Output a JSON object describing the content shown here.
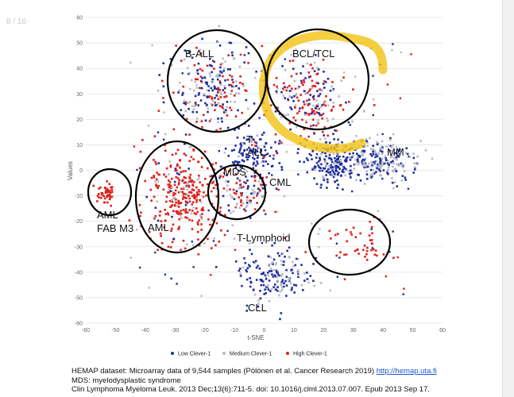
{
  "slide": {
    "page_number": "8 / 16"
  },
  "chart_data": {
    "type": "scatter",
    "xlabel": "t-SNE",
    "ylabel": "Values",
    "xlim": [
      -60,
      60
    ],
    "ylim": [
      -60,
      60
    ],
    "x_ticks": [
      -60,
      -50,
      -40,
      -30,
      -20,
      -10,
      0,
      10,
      20,
      30,
      40,
      50,
      60
    ],
    "y_ticks": [
      60,
      50,
      40,
      30,
      20,
      10,
      0,
      -10,
      -20,
      -30,
      -40,
      -50,
      -60
    ],
    "grid": "horizontal",
    "legend_position": "bottom",
    "series": [
      {
        "name": "Low Clever-1",
        "color": "#1f2f9e"
      },
      {
        "name": "Medium Clever-1",
        "color": "#b9b9c4"
      },
      {
        "name": "High Clever-1",
        "color": "#e0201b"
      }
    ],
    "clusters": [
      {
        "label": "B-ALL",
        "x": -17,
        "y": 32,
        "mix": [
          0.45,
          0.3,
          0.25
        ]
      },
      {
        "label": "BCL/TCL",
        "x": 15,
        "y": 27,
        "mix": [
          0.25,
          0.25,
          0.5
        ]
      },
      {
        "label": "AML",
        "x": -27,
        "y": -10,
        "mix": [
          0.05,
          0.1,
          0.85
        ]
      },
      {
        "label": "MDS",
        "x": -6,
        "y": -7,
        "mix": [
          0.35,
          0.25,
          0.4
        ]
      },
      {
        "label": "AML FAB M3",
        "x": -53,
        "y": -9,
        "mix": [
          0,
          0,
          1
        ]
      },
      {
        "label": "MM",
        "x": 38,
        "y": 4,
        "mix": [
          0.5,
          0.5,
          0
        ]
      },
      {
        "label": "T-ALL",
        "x": -2,
        "y": 7,
        "mix": [
          0.85,
          0.1,
          0.05
        ]
      },
      {
        "label": "CML",
        "x": 23,
        "y": 3,
        "mix": [
          0.85,
          0.15,
          0
        ]
      },
      {
        "label": "T-Lymphoid",
        "x": 31,
        "y": -29,
        "mix": [
          0,
          0,
          1
        ]
      },
      {
        "label": "CLL",
        "x": 3,
        "y": -42,
        "mix": [
          0.65,
          0.35,
          0
        ]
      }
    ],
    "annotations": {
      "b_all": "B-ALL",
      "bcl_tcl": "BCL/TCL",
      "t": "T-",
      "all": "ALL",
      "mm": "MM",
      "mds": "MDS",
      "cml": "CML",
      "aml_fab_line1": "AML",
      "aml_fab_line2": "FAB M3",
      "aml": "AML",
      "t_lymphoid": "T-Lymphoid",
      "cll": "CLL"
    },
    "highlight_color": "#f2c519"
  },
  "caption": {
    "line1_text": "HEMAP dataset: Microarray data of 9,544 samples (Pölönen et al. Cancer Research 2019) ",
    "line1_link": "http://hemap.uta.fi",
    "line2": "MDS: myelodysplastic syndrome",
    "line3": "Clin Lymphoma Myeloma Leuk. 2013 Dec;13(6):711-5. doi: 10.1016/j.clml.2013.07.007. Epub 2013 Sep 17."
  }
}
